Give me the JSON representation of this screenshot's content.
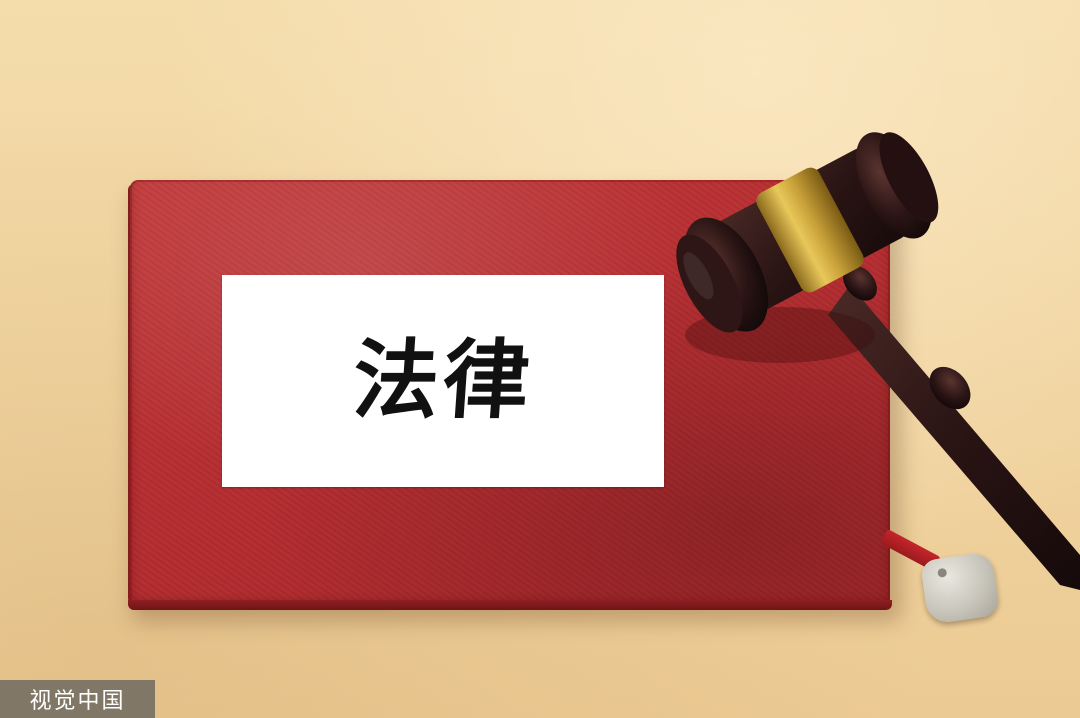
{
  "label": {
    "text": "法律"
  },
  "watermark": {
    "text": "视觉中国"
  },
  "colors": {
    "background": "#f2d8a6",
    "book_cover": "#b52d30",
    "label_card": "#ffffff",
    "gavel_wood": "#2a1414",
    "gavel_band": "#c9a23a",
    "tag": "#c8c5bb"
  },
  "objects": [
    "red-book",
    "white-label-card",
    "wooden-gavel",
    "bookmark-ribbon",
    "metal-tag"
  ]
}
